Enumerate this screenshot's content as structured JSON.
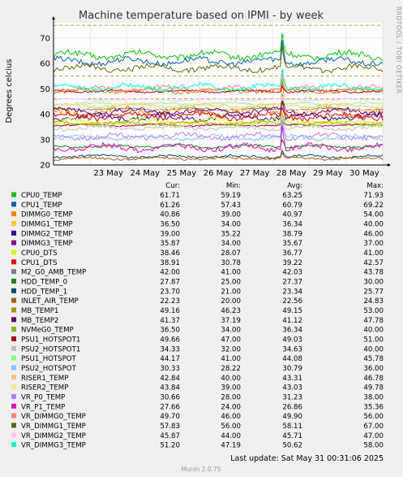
{
  "chart_data": {
    "type": "line",
    "title": "Machine temperature based on IPMI - by week",
    "ylabel": "Degrees celcius",
    "side_label": "RRDTOOL / TOBI OETIKER",
    "ylim": [
      20,
      76
    ],
    "yticks": [
      20,
      30,
      40,
      50,
      60,
      70
    ],
    "xlim": [
      "22 May",
      "31 May"
    ],
    "xticks": [
      "23 May",
      "24 May",
      "25 May",
      "26 May",
      "27 May",
      "28 May",
      "29 May",
      "30 May"
    ],
    "grid": true,
    "legend_headers": [
      "Cur:",
      "Min:",
      "Avg:",
      "Max:"
    ],
    "series": [
      {
        "name": "CPU0_TEMP",
        "color": "#00cc00",
        "cur": "61.71",
        "min": "59.19",
        "avg": "63.25",
        "max": "71.93",
        "avg_val": 63.25
      },
      {
        "name": "CPU1_TEMP",
        "color": "#0066b3",
        "cur": "61.26",
        "min": "57.43",
        "avg": "60.79",
        "max": "69.22",
        "avg_val": 60.79
      },
      {
        "name": "DIMMG0_TEMP",
        "color": "#ff8000",
        "cur": "40.86",
        "min": "39.00",
        "avg": "40.97",
        "max": "54.00",
        "avg_val": 40.97
      },
      {
        "name": "DIMMG1_TEMP",
        "color": "#ffcc00",
        "cur": "36.50",
        "min": "34.00",
        "avg": "36.34",
        "max": "40.00",
        "avg_val": 36.34
      },
      {
        "name": "DIMMG2_TEMP",
        "color": "#330099",
        "cur": "39.00",
        "min": "35.22",
        "avg": "38.79",
        "max": "46.00",
        "avg_val": 38.79
      },
      {
        "name": "DIMMG3_TEMP",
        "color": "#990099",
        "cur": "35.87",
        "min": "34.00",
        "avg": "35.67",
        "max": "37.00",
        "avg_val": 35.67
      },
      {
        "name": "CPU0_DTS",
        "color": "#ccff00",
        "cur": "38.46",
        "min": "28.07",
        "avg": "36.77",
        "max": "41.00",
        "avg_val": 36.77
      },
      {
        "name": "CPU1_DTS",
        "color": "#ff0000",
        "cur": "38.91",
        "min": "30.78",
        "avg": "39.22",
        "max": "42.57",
        "avg_val": 39.22
      },
      {
        "name": "M2_G0_AMB_TEMP",
        "color": "#808080",
        "cur": "42.00",
        "min": "41.00",
        "avg": "42.03",
        "max": "43.78",
        "avg_val": 42.03
      },
      {
        "name": "HDD_TEMP_0",
        "color": "#008f00",
        "cur": "27.87",
        "min": "25.00",
        "avg": "27.37",
        "max": "30.00",
        "avg_val": 27.37
      },
      {
        "name": "HDD_TEMP_1",
        "color": "#00487d",
        "cur": "23.70",
        "min": "21.00",
        "avg": "23.34",
        "max": "25.77",
        "avg_val": 23.34
      },
      {
        "name": "INLET_AIR_TEMP",
        "color": "#b35a00",
        "cur": "22.23",
        "min": "20.00",
        "avg": "22.56",
        "max": "24.83",
        "avg_val": 22.56
      },
      {
        "name": "MB_TEMP1",
        "color": "#b38f00",
        "cur": "49.16",
        "min": "46.23",
        "avg": "49.15",
        "max": "53.00",
        "avg_val": 49.15
      },
      {
        "name": "MB_TEMP2",
        "color": "#6b006b",
        "cur": "41.37",
        "min": "37.19",
        "avg": "41.12",
        "max": "47.78",
        "avg_val": 41.12
      },
      {
        "name": "NVMeG0_TEMP",
        "color": "#8fb300",
        "cur": "36.50",
        "min": "34.00",
        "avg": "36.34",
        "max": "40.00",
        "avg_val": 36.34
      },
      {
        "name": "PSU1_HOTSPOT1",
        "color": "#b30000",
        "cur": "49.66",
        "min": "47.00",
        "avg": "49.03",
        "max": "51.00",
        "avg_val": 49.03
      },
      {
        "name": "PSU2_HOTSPOT1",
        "color": "#bebebe",
        "cur": "34.33",
        "min": "32.00",
        "avg": "34.63",
        "max": "40.00",
        "avg_val": 34.63
      },
      {
        "name": "PSU1_HOTSPOT",
        "color": "#80ff80",
        "cur": "44.17",
        "min": "41.00",
        "avg": "44.08",
        "max": "45.78",
        "avg_val": 44.08
      },
      {
        "name": "PSU2_HOTSPOT",
        "color": "#80c9ff",
        "cur": "30.33",
        "min": "28.22",
        "avg": "30.79",
        "max": "36.00",
        "avg_val": 30.79
      },
      {
        "name": "RISER1_TEMP",
        "color": "#ffc080",
        "cur": "42.84",
        "min": "40.00",
        "avg": "43.31",
        "max": "46.78",
        "avg_val": 43.31
      },
      {
        "name": "RISER2_TEMP",
        "color": "#ffe680",
        "cur": "43.84",
        "min": "39.00",
        "avg": "43.03",
        "max": "49.78",
        "avg_val": 43.03
      },
      {
        "name": "VR_P0_TEMP",
        "color": "#aa80ff",
        "cur": "30.66",
        "min": "28.00",
        "avg": "31.23",
        "max": "38.00",
        "avg_val": 31.23
      },
      {
        "name": "VR_P1_TEMP",
        "color": "#ee00cc",
        "cur": "27.66",
        "min": "24.00",
        "avg": "26.86",
        "max": "35.36",
        "avg_val": 26.86
      },
      {
        "name": "VR_DIMMG0_TEMP",
        "color": "#ff8080",
        "cur": "49.70",
        "min": "46.00",
        "avg": "49.90",
        "max": "56.00",
        "avg_val": 49.9
      },
      {
        "name": "VR_DIMMG1_TEMP",
        "color": "#666600",
        "cur": "57.83",
        "min": "56.00",
        "avg": "58.11",
        "max": "67.00",
        "avg_val": 58.11
      },
      {
        "name": "VR_DIMMG2_TEMP",
        "color": "#ffbfff",
        "cur": "45.87",
        "min": "44.00",
        "avg": "45.71",
        "max": "47.00",
        "avg_val": 45.71
      },
      {
        "name": "VR_DIMMG3_TEMP",
        "color": "#00ffcc",
        "cur": "51.20",
        "min": "47.19",
        "avg": "50.62",
        "max": "58.00",
        "avg_val": 50.62
      }
    ],
    "warning_lines": [
      75,
      55,
      46
    ],
    "footer": "Last update: Sat May 31 00:31:06 2025",
    "generator": "Munin 2.0.75"
  }
}
